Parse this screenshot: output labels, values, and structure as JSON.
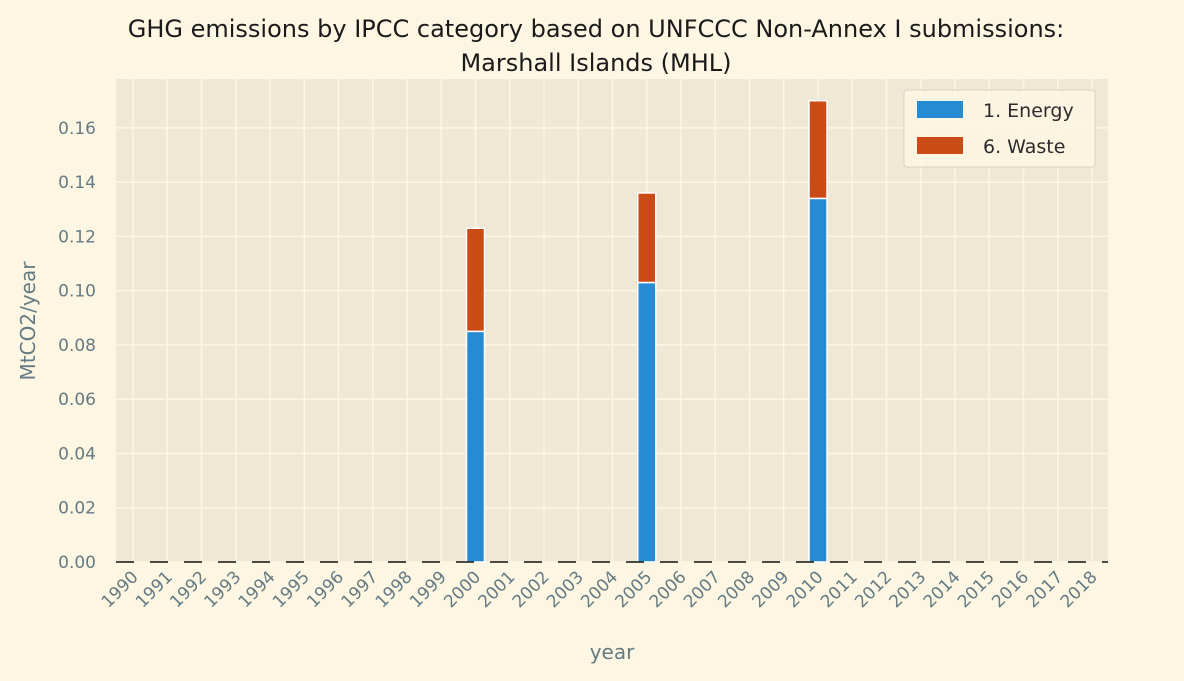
{
  "chart_data": {
    "type": "bar",
    "stacked": true,
    "title_line1": "GHG emissions by IPCC category based on UNFCCC Non-Annex I submissions:",
    "title_line2": "Marshall Islands (MHL)",
    "xlabel": "year",
    "ylabel": "MtCO2/year",
    "ylim": [
      0,
      0.178
    ],
    "yticks": [
      "0.00",
      "0.02",
      "0.04",
      "0.06",
      "0.08",
      "0.10",
      "0.12",
      "0.14",
      "0.16"
    ],
    "grid": true,
    "legend_position": "top-right",
    "categories": [
      "1990",
      "1991",
      "1992",
      "1993",
      "1994",
      "1995",
      "1996",
      "1997",
      "1998",
      "1999",
      "2000",
      "2001",
      "2002",
      "2003",
      "2004",
      "2005",
      "2006",
      "2007",
      "2008",
      "2009",
      "2010",
      "2011",
      "2012",
      "2013",
      "2014",
      "2015",
      "2016",
      "2017",
      "2018"
    ],
    "series": [
      {
        "name": "1. Energy",
        "color": "#268bd2",
        "values": [
          0,
          0,
          0,
          0,
          0,
          0,
          0,
          0,
          0,
          0,
          0.085,
          0,
          0,
          0,
          0,
          0.103,
          0,
          0,
          0,
          0,
          0.134,
          0,
          0,
          0,
          0,
          0,
          0,
          0,
          0
        ]
      },
      {
        "name": "6. Waste",
        "color": "#cb4b16",
        "values": [
          0,
          0,
          0,
          0,
          0,
          0,
          0,
          0,
          0,
          0,
          0.038,
          0,
          0,
          0,
          0,
          0.033,
          0,
          0,
          0,
          0,
          0.036,
          0,
          0,
          0,
          0,
          0,
          0,
          0,
          0
        ]
      }
    ]
  },
  "colors": {
    "background": "#fdf6e3",
    "plot_background": "#eee8d5",
    "grid": "#fdf6e3",
    "text": "#657b83"
  }
}
